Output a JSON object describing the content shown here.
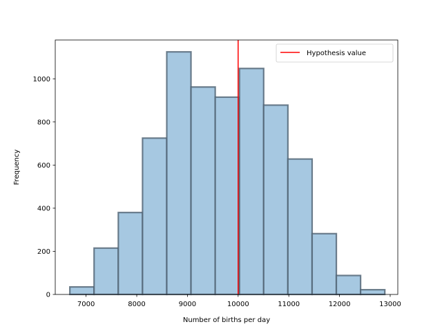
{
  "chart_data": {
    "type": "histogram",
    "title": "",
    "xlabel": "Number of births per day",
    "ylabel": "Frequency",
    "xlim": [
      6392,
      13150
    ],
    "ylim": [
      0,
      1180
    ],
    "xticks": [
      7000,
      8000,
      9000,
      10000,
      11000,
      12000,
      13000
    ],
    "yticks": [
      0,
      200,
      400,
      600,
      800,
      1000
    ],
    "bins": [
      {
        "start": 6680,
        "end": 7158,
        "count": 35
      },
      {
        "start": 7158,
        "end": 7636,
        "count": 215
      },
      {
        "start": 7636,
        "end": 8114,
        "count": 380
      },
      {
        "start": 8114,
        "end": 8592,
        "count": 725
      },
      {
        "start": 8592,
        "end": 9070,
        "count": 1125
      },
      {
        "start": 9070,
        "end": 9548,
        "count": 962
      },
      {
        "start": 9548,
        "end": 10026,
        "count": 915
      },
      {
        "start": 10026,
        "end": 10504,
        "count": 1048
      },
      {
        "start": 10504,
        "end": 10982,
        "count": 878
      },
      {
        "start": 10982,
        "end": 11460,
        "count": 628
      },
      {
        "start": 11460,
        "end": 11938,
        "count": 282
      },
      {
        "start": 11938,
        "end": 12416,
        "count": 88
      },
      {
        "start": 12416,
        "end": 12894,
        "count": 22
      }
    ],
    "hypothesis_value": 10000,
    "grid": false,
    "legend": {
      "placement": "top-right",
      "entries": [
        {
          "label": "Hypothesis value",
          "color": "#d62728"
        }
      ]
    },
    "colors": {
      "bar_fill": "#a6c8e1",
      "bar_edge": "#4f6272",
      "hypothesis_line": "#ff0000"
    }
  }
}
